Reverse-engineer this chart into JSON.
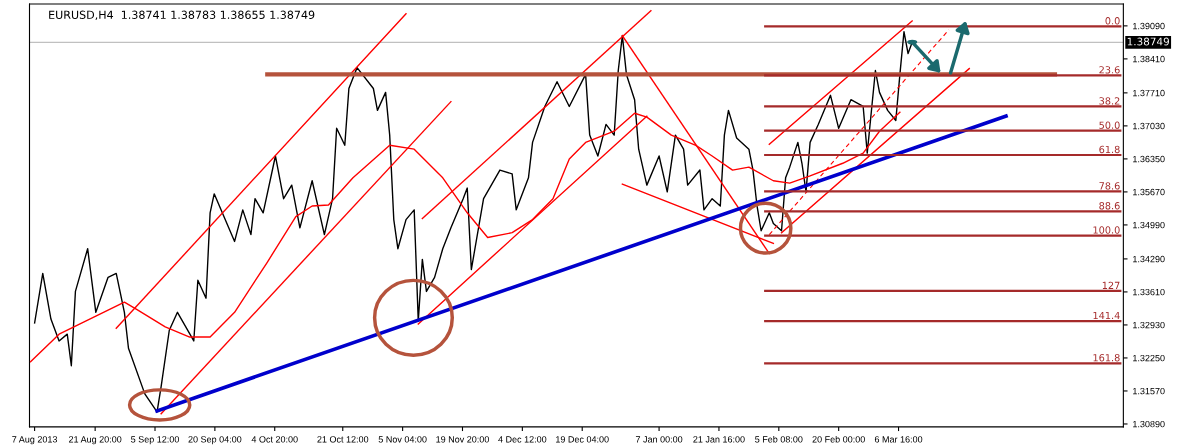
{
  "chart_data": {
    "type": "line",
    "title": "EURUSD,H4  1.38741 1.38783 1.38655 1.38749",
    "legend": false,
    "grid": false,
    "xlim": [
      "2013-08-05T18:00",
      "2014-04-30T18:00"
    ],
    "xticks": [
      {
        "value": "2013-08-07",
        "label": "7 Aug 2013"
      },
      {
        "value": "2013-08-21T20:00",
        "label": "21 Aug 20:00"
      },
      {
        "value": "2013-09-05T12:00",
        "label": "5 Sep 12:00"
      },
      {
        "value": "2013-09-20T04:00",
        "label": "20 Sep 04:00"
      },
      {
        "value": "2013-10-04T20:00",
        "label": "4 Oct 20:00"
      },
      {
        "value": "2013-10-21T12:00",
        "label": "21 Oct 12:00"
      },
      {
        "value": "2013-11-05T04:00",
        "label": "5 Nov 04:00"
      },
      {
        "value": "2013-11-19T20:00",
        "label": "19 Nov 20:00"
      },
      {
        "value": "2013-12-04T12:00",
        "label": "4 Dec 12:00"
      },
      {
        "value": "2013-12-19T04:00",
        "label": "19 Dec 04:00"
      },
      {
        "value": "2014-01-07T00:00",
        "label": "7 Jan 00:00"
      },
      {
        "value": "2014-01-21T16:00",
        "label": "21 Jan 16:00"
      },
      {
        "value": "2014-02-05T08:00",
        "label": "5 Feb 08:00"
      },
      {
        "value": "2014-02-20T00:00",
        "label": "20 Feb 00:00"
      },
      {
        "value": "2014-03-06T16:00",
        "label": "6 Mar 16:00"
      }
    ],
    "ylim": [
      1.3083,
      1.3954
    ],
    "yticks": [
      {
        "value": 1.3089,
        "label": "1.30890"
      },
      {
        "value": 1.3157,
        "label": "1.31570"
      },
      {
        "value": 1.3225,
        "label": "1.32250"
      },
      {
        "value": 1.3293,
        "label": "1.32930"
      },
      {
        "value": 1.3361,
        "label": "1.33610"
      },
      {
        "value": 1.3429,
        "label": "1.34290"
      },
      {
        "value": 1.3499,
        "label": "1.34990"
      },
      {
        "value": 1.3567,
        "label": "1.35670"
      },
      {
        "value": 1.3635,
        "label": "1.36350"
      },
      {
        "value": 1.3703,
        "label": "1.37030"
      },
      {
        "value": 1.3771,
        "label": "1.37710"
      },
      {
        "value": 1.3841,
        "label": "1.38410"
      },
      {
        "value": 1.3909,
        "label": "1.39090"
      }
    ],
    "ref_lines": [
      {
        "axis": "y",
        "value": 1.38749,
        "label": "1.38749",
        "color": "#c0c0c0"
      }
    ],
    "series": [
      {
        "color": "#000000",
        "x": [
          "2013-08-07",
          "2013-08-09",
          "2013-08-11",
          "2013-08-13",
          "2013-08-15",
          "2013-08-16",
          "2013-08-17",
          "2013-08-20",
          "2013-08-22",
          "2013-08-25",
          "2013-08-27",
          "2013-08-29",
          "2013-08-30",
          "2013-09-03",
          "2013-09-06",
          "2013-09-07",
          "2013-09-09",
          "2013-09-11",
          "2013-09-15",
          "2013-09-16",
          "2013-09-18",
          "2013-09-19",
          "2013-09-20",
          "2013-09-25",
          "2013-09-27",
          "2013-09-29",
          "2013-09-30",
          "2013-10-02",
          "2013-10-05",
          "2013-10-07",
          "2013-10-09",
          "2013-10-11",
          "2013-10-14",
          "2013-10-17",
          "2013-10-19",
          "2013-10-20",
          "2013-10-22",
          "2013-10-23",
          "2013-10-25",
          "2013-10-29",
          "2013-10-30",
          "2013-11-01",
          "2013-11-02",
          "2013-11-03",
          "2013-11-04",
          "2013-11-06",
          "2013-11-08",
          "2013-11-09",
          "2013-11-10",
          "2013-11-11",
          "2013-11-13",
          "2013-11-15",
          "2013-11-17",
          "2013-11-20",
          "2013-11-21",
          "2013-11-22",
          "2013-11-25",
          "2013-11-29",
          "2013-12-02",
          "2013-12-03",
          "2013-12-06",
          "2013-12-07",
          "2013-12-10",
          "2013-12-13",
          "2013-12-16",
          "2013-12-20",
          "2013-12-21",
          "2013-12-23",
          "2013-12-25",
          "2013-12-27",
          "2013-12-28",
          "2013-12-29",
          "2013-12-30",
          "2014-01-01",
          "2014-01-02",
          "2014-01-04",
          "2014-01-07",
          "2014-01-09",
          "2014-01-11",
          "2014-01-13",
          "2014-01-14",
          "2014-01-17",
          "2014-01-18",
          "2014-01-20",
          "2014-01-22",
          "2014-01-23",
          "2014-01-24",
          "2014-01-26",
          "2014-01-29",
          "2014-01-30",
          "2014-01-31",
          "2014-02-01",
          "2014-02-03",
          "2014-02-04",
          "2014-02-06",
          "2014-02-07",
          "2014-02-08",
          "2014-02-10",
          "2014-02-11",
          "2014-02-12",
          "2014-02-13",
          "2014-02-15",
          "2014-02-18",
          "2014-02-20",
          "2014-02-23",
          "2014-02-26",
          "2014-02-27",
          "2014-03-01",
          "2014-03-02",
          "2014-03-04",
          "2014-03-06",
          "2014-03-07",
          "2014-03-08",
          "2014-03-09",
          "2014-03-10"
        ],
        "values": [
          1.3297,
          1.3399,
          1.3305,
          1.326,
          1.3274,
          1.3209,
          1.3362,
          1.345,
          1.3319,
          1.3391,
          1.3399,
          1.3319,
          1.3245,
          1.3151,
          1.3114,
          1.3166,
          1.3282,
          1.3319,
          1.326,
          1.3385,
          1.3348,
          1.3524,
          1.3563,
          1.3465,
          1.353,
          1.3479,
          1.3553,
          1.3524,
          1.3641,
          1.3553,
          1.3581,
          1.3493,
          1.359,
          1.3479,
          1.3553,
          1.3698,
          1.3663,
          1.378,
          1.3823,
          1.378,
          1.3735,
          1.3772,
          1.3684,
          1.351,
          1.345,
          1.351,
          1.353,
          1.3301,
          1.3428,
          1.3362,
          1.3391,
          1.345,
          1.3493,
          1.3553,
          1.3575,
          1.3407,
          1.3553,
          1.3612,
          1.3604,
          1.353,
          1.3596,
          1.3669,
          1.3743,
          1.3794,
          1.3743,
          1.3809,
          1.3684,
          1.3641,
          1.3706,
          1.3684,
          1.3817,
          1.3889,
          1.3809,
          1.3757,
          1.3655,
          1.3581,
          1.3641,
          1.3567,
          1.3684,
          1.3655,
          1.3581,
          1.3612,
          1.353,
          1.3553,
          1.3538,
          1.3684,
          1.3735,
          1.3678,
          1.3655,
          1.3612,
          1.3538,
          1.3487,
          1.3524,
          1.3502,
          1.3487,
          1.3596,
          1.3618,
          1.3669,
          1.3626,
          1.3567,
          1.3669,
          1.3706,
          1.3766,
          1.3698,
          1.3757,
          1.3743,
          1.3647,
          1.3817,
          1.3772,
          1.3735,
          1.3714,
          1.3809,
          1.3897,
          1.3852,
          1.3875
        ]
      },
      {
        "color": "#ff0000",
        "x": [
          "2013-08-06",
          "2013-08-13",
          "2013-08-22",
          "2013-08-29",
          "2013-09-01",
          "2013-09-08",
          "2013-09-14",
          "2013-09-19",
          "2013-09-25",
          "2013-10-03",
          "2013-10-10",
          "2013-10-14",
          "2013-10-18",
          "2013-10-24",
          "2013-11-02",
          "2013-11-08",
          "2013-11-15",
          "2013-11-21",
          "2013-11-26",
          "2013-12-02",
          "2013-12-07",
          "2013-12-12",
          "2013-12-16",
          "2013-12-20",
          "2013-12-27",
          "2014-01-01",
          "2014-01-04",
          "2014-01-10",
          "2014-01-16",
          "2014-01-20",
          "2014-01-25",
          "2014-01-29",
          "2014-02-04",
          "2014-02-08",
          "2014-02-13",
          "2014-02-21",
          "2014-02-26",
          "2014-03-02",
          "2014-03-07"
        ],
        "values": [
          1.3217,
          1.3274,
          1.3311,
          1.334,
          1.3325,
          1.3289,
          1.3268,
          1.3268,
          1.3319,
          1.3422,
          1.3516,
          1.3538,
          1.354,
          1.3596,
          1.3663,
          1.3655,
          1.3596,
          1.3524,
          1.3473,
          1.3483,
          1.351,
          1.3553,
          1.3635,
          1.3669,
          1.3692,
          1.3729,
          1.3721,
          1.3684,
          1.3663,
          1.3641,
          1.3612,
          1.3618,
          1.359,
          1.3585,
          1.36,
          1.3626,
          1.3647,
          1.3692,
          1.3731
        ]
      },
      {
        "type": "line",
        "color": "#ff0000",
        "x": [
          "2013-08-27",
          "2013-11-06"
        ],
        "values": [
          1.3286,
          1.3934
        ]
      },
      {
        "type": "line",
        "color": "#ff0000",
        "x": [
          "2013-09-07",
          "2013-11-17"
        ],
        "values": [
          1.311,
          1.3753
        ]
      },
      {
        "type": "line",
        "color": "#ff0000",
        "x": [
          "2013-11-10",
          "2014-01-05"
        ],
        "values": [
          1.3512,
          1.394
        ]
      },
      {
        "type": "line",
        "color": "#ff0000",
        "x": [
          "2013-11-09",
          "2014-01-04"
        ],
        "values": [
          1.3295,
          1.3723
        ]
      },
      {
        "type": "line",
        "color": "#ff0000",
        "x": [
          "2013-12-29",
          "2014-02-03"
        ],
        "values": [
          1.3889,
          1.344
        ]
      },
      {
        "type": "line",
        "color": "#ff0000",
        "x": [
          "2013-12-29",
          "2014-02-04"
        ],
        "values": [
          1.3583,
          1.3461
        ]
      },
      {
        "type": "line",
        "color": "#ff0000",
        "x": [
          "2014-02-03",
          "2014-03-10"
        ],
        "values": [
          1.3665,
          1.3919
        ]
      },
      {
        "type": "line",
        "color": "#ff0000",
        "x": [
          "2014-02-06",
          "2014-03-24"
        ],
        "values": [
          1.3483,
          1.3821
        ]
      },
      {
        "type": "line",
        "color": "#ff0000",
        "line_style": "dashed",
        "x": [
          "2014-02-03",
          "2014-03-19"
        ],
        "values": [
          1.3479,
          1.3901
        ]
      },
      {
        "type": "line",
        "color": "#b5533c",
        "x": [
          "2013-10-03",
          "2014-04-14"
        ],
        "values": [
          1.3809,
          1.3809
        ]
      },
      {
        "type": "line",
        "color": "#0000cc",
        "x": [
          "2013-09-06",
          "2014-04-02"
        ],
        "values": [
          1.3116,
          1.3723
        ]
      },
      {
        "type": "line",
        "name": "0.0",
        "color": "#a52a2a",
        "x": [
          "2014-02-02",
          "2014-04-30"
        ],
        "values": [
          1.3908,
          1.3908
        ]
      },
      {
        "type": "line",
        "name": "23.6",
        "color": "#a52a2a",
        "x": [
          "2014-02-02",
          "2014-04-30"
        ],
        "values": [
          1.3807,
          1.3807
        ]
      },
      {
        "type": "line",
        "name": "38.2",
        "color": "#a52a2a",
        "x": [
          "2014-02-02",
          "2014-04-30"
        ],
        "values": [
          1.3743,
          1.3743
        ]
      },
      {
        "type": "line",
        "name": "50.0",
        "color": "#a52a2a",
        "x": [
          "2014-02-02",
          "2014-04-30"
        ],
        "values": [
          1.3693,
          1.3693
        ]
      },
      {
        "type": "line",
        "name": "61.8",
        "color": "#a52a2a",
        "x": [
          "2014-02-02",
          "2014-04-30"
        ],
        "values": [
          1.3643,
          1.3643
        ]
      },
      {
        "type": "line",
        "name": "78.6",
        "color": "#a52a2a",
        "x": [
          "2014-02-02",
          "2014-04-30"
        ],
        "values": [
          1.3568,
          1.3568
        ]
      },
      {
        "type": "line",
        "name": "88.6",
        "color": "#a52a2a",
        "x": [
          "2014-02-02",
          "2014-04-30"
        ],
        "values": [
          1.3527,
          1.3527
        ]
      },
      {
        "type": "line",
        "name": "100.0",
        "color": "#a52a2a",
        "x": [
          "2014-02-02",
          "2014-04-30"
        ],
        "values": [
          1.3477,
          1.3477
        ]
      },
      {
        "type": "line",
        "name": "127",
        "color": "#a52a2a",
        "x": [
          "2014-02-02",
          "2014-04-30"
        ],
        "values": [
          1.3363,
          1.3363
        ]
      },
      {
        "type": "line",
        "name": "141.4",
        "color": "#a52a2a",
        "x": [
          "2014-02-02",
          "2014-04-30"
        ],
        "values": [
          1.3301,
          1.3301
        ]
      },
      {
        "type": "line",
        "name": "161.8",
        "color": "#a52a2a",
        "x": [
          "2014-02-02",
          "2014-04-30"
        ],
        "values": [
          1.3214,
          1.3214
        ]
      }
    ]
  }
}
